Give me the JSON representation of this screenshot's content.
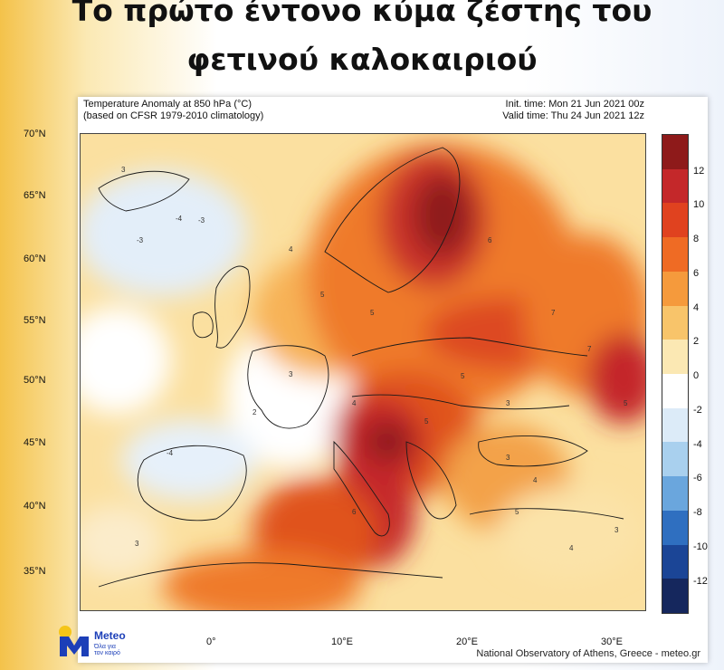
{
  "header": {
    "title_line1": "Το πρώτο έντονο κύμα ζέστης του",
    "title_line2": "φετινού καλοκαιριού"
  },
  "map": {
    "title_line1": "Temperature Anomaly at 850 hPa (°C)",
    "title_line2": "(based on CFSR 1979-2010 climatology)",
    "init_time": "Init. time: Mon 21 Jun 2021 00z",
    "valid_time": "Valid time: Thu 24 Jun 2021 12z",
    "lat_labels": [
      "70°N",
      "65°N",
      "60°N",
      "55°N",
      "50°N",
      "45°N",
      "40°N",
      "35°N"
    ],
    "lon_labels": [
      "0°",
      "10°E",
      "20°E",
      "30°E"
    ],
    "contour_samples": [
      "-4",
      "-3",
      "-3",
      "3",
      "4",
      "5",
      "5",
      "6",
      "7",
      "3",
      "4",
      "5",
      "2",
      "3",
      "5",
      "7",
      "3",
      "4",
      "3",
      "-4",
      "6",
      "5",
      "3",
      "4",
      "5"
    ],
    "credit": "National Observatory of Athens, Greece - meteo.gr"
  },
  "colorbar": {
    "labels": [
      "12",
      "10",
      "8",
      "6",
      "4",
      "2",
      "0",
      "-2",
      "-4",
      "-6",
      "-8",
      "-10",
      "-12"
    ],
    "colors": [
      "#8e1a1a",
      "#c4282a",
      "#e0421f",
      "#ef6b24",
      "#f59a3c",
      "#f8c46a",
      "#fbe8b3",
      "#ffffff",
      "#dcebf8",
      "#a9d0ee",
      "#6aa6dd",
      "#2f6fc0",
      "#1b4596",
      "#15275d"
    ]
  },
  "logo": {
    "name": "Meteo",
    "tagline_1": "Όλα για",
    "tagline_2": "τον καιρό",
    "icon": "meteo-logo-icon"
  }
}
